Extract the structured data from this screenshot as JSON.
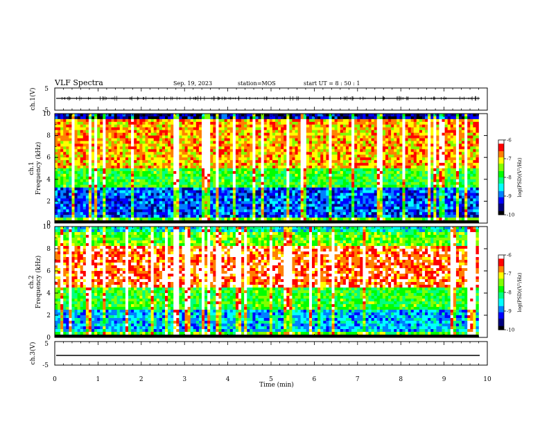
{
  "header": {
    "title": "VLF Spectra",
    "date": "Sep. 19, 2023",
    "station": "station=MOS",
    "start": "start UT = 8 : 50 : 1"
  },
  "colors": {
    "palette": [
      "#000000",
      "#00007f",
      "#0000ff",
      "#0080ff",
      "#00ffff",
      "#00ff80",
      "#00ff00",
      "#80ff00",
      "#ffff00",
      "#ff8000",
      "#ff0000",
      "#ffffff"
    ]
  },
  "chart_data": [
    {
      "type": "line",
      "id": "ch1-waveform",
      "ylabel": "ch.1(V)",
      "ylim": [
        -5,
        5
      ],
      "yticks": [
        5,
        -5
      ],
      "xlim": [
        0,
        10
      ],
      "description_level": 0
    },
    {
      "type": "heatmap",
      "id": "ch1-spectrogram",
      "ylabel_top": "ch.1",
      "ylabel": "Frequency (kHz)",
      "ylim": [
        0,
        10
      ],
      "yticks": [
        0,
        2,
        4,
        6,
        8,
        10
      ],
      "xlim": [
        0,
        9.8
      ],
      "colorbar": {
        "label": "log(PSD)(V²/Hz)",
        "ticks": [
          -6,
          -7,
          -8,
          -9,
          -10
        ],
        "range": [
          -10,
          -6
        ]
      }
    },
    {
      "type": "heatmap",
      "id": "ch2-spectrogram",
      "ylabel_top": "ch.2",
      "ylabel": "Frequency (kHz)",
      "ylim": [
        0,
        10
      ],
      "yticks": [
        0,
        2,
        4,
        6,
        8,
        10
      ],
      "xlim": [
        0,
        9.8
      ],
      "colorbar": {
        "label": "log(PSD)(V²/Hz)",
        "ticks": [
          -6,
          -7,
          -8,
          -9,
          -10
        ],
        "range": [
          -10,
          -6
        ]
      }
    },
    {
      "type": "line",
      "id": "ch3-waveform",
      "ylabel": "ch.3(V)",
      "ylim": [
        -5,
        5
      ],
      "yticks": [
        5,
        -5
      ],
      "xlim": [
        0,
        10
      ],
      "description_level": -1.5
    }
  ],
  "xaxis": {
    "label": "Time (min)",
    "ticks": [
      "0",
      "1",
      "2",
      "3",
      "4",
      "5",
      "6",
      "7",
      "8",
      "9",
      "10"
    ]
  }
}
